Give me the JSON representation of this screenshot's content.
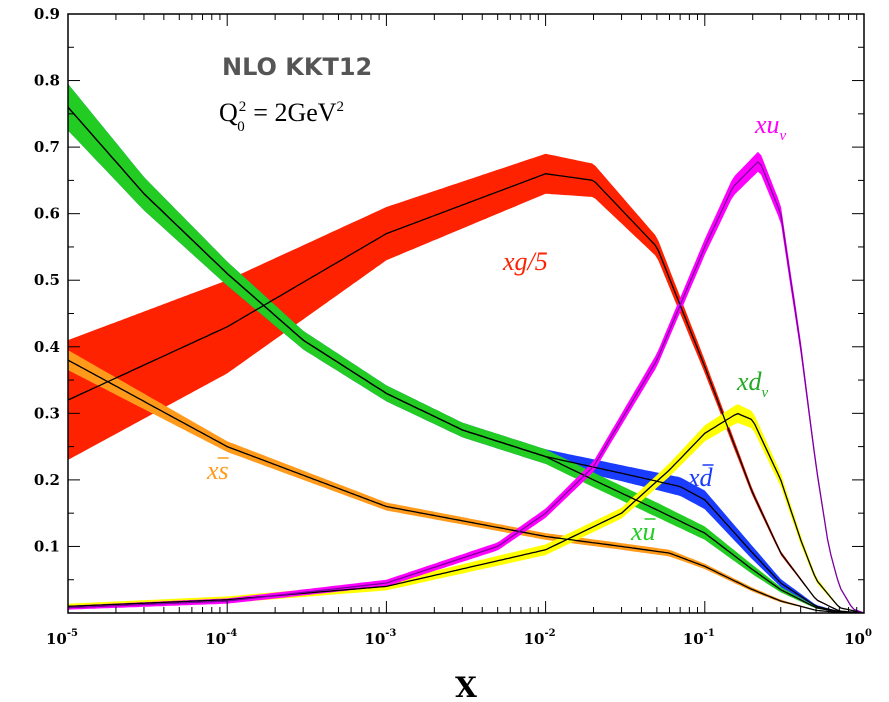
{
  "chart_data": {
    "type": "line",
    "title": "NLO KKT12",
    "subtitle": {
      "main": "Q",
      "sub": "0",
      "sup": "2",
      "rest": " = 2GeV",
      "rest_sup": "2"
    },
    "xlabel": "X",
    "ylabel": "",
    "x_scale": "log",
    "xlim": [
      1e-05,
      1
    ],
    "ylim": [
      0,
      0.9
    ],
    "x_ticks": [
      {
        "value": 1e-05,
        "base": "10",
        "exp": "-5"
      },
      {
        "value": 0.0001,
        "base": "10",
        "exp": "-4"
      },
      {
        "value": 0.001,
        "base": "10",
        "exp": "-3"
      },
      {
        "value": 0.01,
        "base": "10",
        "exp": "-2"
      },
      {
        "value": 0.1,
        "base": "10",
        "exp": "-1"
      },
      {
        "value": 1,
        "base": "10",
        "exp": "0"
      }
    ],
    "y_ticks": [
      "0.1",
      "0.2",
      "0.3",
      "0.4",
      "0.5",
      "0.6",
      "0.7",
      "0.8",
      "0.9"
    ],
    "grid": false,
    "series": [
      {
        "name": "xg/5",
        "label_parts": {
          "main": "xg/5",
          "sub": "",
          "bar": ""
        },
        "color": "#ff2200",
        "line_color": "#000000",
        "x": [
          1e-05,
          0.0001,
          0.001,
          0.01,
          0.02,
          0.05,
          0.1,
          0.2,
          0.3,
          0.5,
          0.7,
          1
        ],
        "y": [
          0.32,
          0.43,
          0.57,
          0.66,
          0.65,
          0.55,
          0.37,
          0.18,
          0.09,
          0.02,
          0.003,
          0
        ],
        "band": [
          0.09,
          0.07,
          0.04,
          0.03,
          0.025,
          0.015,
          0.01,
          0.005,
          0.003,
          0.001,
          0.0005,
          0
        ]
      },
      {
        "name": "xd̄",
        "label_parts": {
          "main": "xd",
          "sub": "",
          "bar": "d"
        },
        "color": "#1a3cff",
        "line_color": "#000000",
        "x": [
          1e-05,
          3e-05,
          0.0001,
          0.0003,
          0.001,
          0.003,
          0.01,
          0.03,
          0.07,
          0.1,
          0.2,
          0.3,
          0.5,
          0.7,
          1
        ],
        "y": [
          0.76,
          0.63,
          0.51,
          0.41,
          0.33,
          0.275,
          0.235,
          0.21,
          0.19,
          0.17,
          0.09,
          0.045,
          0.01,
          0.002,
          0
        ],
        "band": [
          0.035,
          0.025,
          0.018,
          0.014,
          0.012,
          0.011,
          0.011,
          0.012,
          0.014,
          0.014,
          0.01,
          0.006,
          0.002,
          0.0005,
          0
        ]
      },
      {
        "name": "xū",
        "label_parts": {
          "main": "xu",
          "sub": "",
          "bar": "u"
        },
        "color": "#22cc22",
        "line_color": "#000000",
        "x": [
          1e-05,
          3e-05,
          0.0001,
          0.0003,
          0.001,
          0.003,
          0.01,
          0.02,
          0.05,
          0.1,
          0.2,
          0.3,
          0.5,
          0.7,
          1
        ],
        "y": [
          0.76,
          0.63,
          0.51,
          0.41,
          0.33,
          0.275,
          0.235,
          0.2,
          0.155,
          0.12,
          0.065,
          0.035,
          0.008,
          0.0015,
          0
        ],
        "band": [
          0.035,
          0.025,
          0.018,
          0.014,
          0.012,
          0.011,
          0.011,
          0.011,
          0.011,
          0.01,
          0.007,
          0.004,
          0.0015,
          0.0004,
          0
        ]
      },
      {
        "name": "xs̄",
        "label_parts": {
          "main": "xs",
          "sub": "",
          "bar": "s"
        },
        "color": "#ff9a1a",
        "line_color": "#000000",
        "x": [
          1e-05,
          0.0001,
          0.001,
          0.01,
          0.03,
          0.06,
          0.1,
          0.2,
          0.3,
          0.5,
          0.7,
          1
        ],
        "y": [
          0.38,
          0.25,
          0.16,
          0.115,
          0.1,
          0.09,
          0.07,
          0.035,
          0.018,
          0.004,
          0.0008,
          0
        ],
        "band": [
          0.015,
          0.008,
          0.006,
          0.005,
          0.005,
          0.005,
          0.004,
          0.003,
          0.002,
          0.0005,
          0.0002,
          0
        ]
      },
      {
        "name": "xd_v",
        "label_parts": {
          "main": "xd",
          "sub": "v",
          "bar": ""
        },
        "color": "#ffff00",
        "line_color": "#000000",
        "x": [
          1e-05,
          0.0001,
          0.001,
          0.01,
          0.03,
          0.06,
          0.1,
          0.16,
          0.2,
          0.3,
          0.4,
          0.5,
          0.7,
          1
        ],
        "y": [
          0.01,
          0.02,
          0.04,
          0.095,
          0.15,
          0.215,
          0.27,
          0.3,
          0.29,
          0.2,
          0.11,
          0.05,
          0.008,
          0
        ],
        "band": [
          0.004,
          0.005,
          0.006,
          0.008,
          0.008,
          0.01,
          0.012,
          0.014,
          0.013,
          0.01,
          0.007,
          0.004,
          0.001,
          0
        ]
      },
      {
        "name": "xu_v",
        "label_parts": {
          "main": "xu",
          "sub": "v",
          "bar": ""
        },
        "color": "#ff00ff",
        "line_color": "#7a00a0",
        "x": [
          1e-05,
          0.0001,
          0.001,
          0.005,
          0.01,
          0.02,
          0.05,
          0.1,
          0.15,
          0.22,
          0.3,
          0.4,
          0.5,
          0.6,
          0.7,
          0.85,
          1
        ],
        "y": [
          0.008,
          0.018,
          0.045,
          0.1,
          0.15,
          0.22,
          0.38,
          0.55,
          0.64,
          0.68,
          0.6,
          0.4,
          0.22,
          0.1,
          0.04,
          0.006,
          0
        ],
        "band": [
          0.003,
          0.004,
          0.005,
          0.006,
          0.007,
          0.008,
          0.01,
          0.012,
          0.014,
          0.015,
          0.013,
          0.01,
          0.006,
          0.003,
          0.001,
          0.0003,
          0
        ]
      }
    ]
  }
}
